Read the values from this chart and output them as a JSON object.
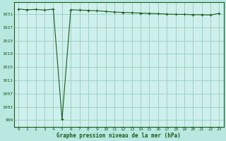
{
  "title": "Graphe pression niveau de la mer (hPa)",
  "background_color": "#b8e8e0",
  "plot_background_color": "#cdf0ec",
  "grid_color": "#99ccbb",
  "line_color": "#1a5c1a",
  "marker_color": "#1a5c1a",
  "xlim": [
    -0.5,
    23.5
  ],
  "ylim": [
    997,
    1034.5
  ],
  "yticks": [
    999,
    1003,
    1007,
    1011,
    1015,
    1019,
    1023,
    1027,
    1031
  ],
  "xticks": [
    0,
    1,
    2,
    3,
    4,
    5,
    6,
    7,
    8,
    9,
    10,
    11,
    12,
    13,
    14,
    15,
    16,
    17,
    18,
    19,
    20,
    21,
    22,
    23
  ],
  "hours": [
    0,
    1,
    2,
    3,
    4,
    5,
    6,
    7,
    8,
    9,
    10,
    11,
    12,
    13,
    14,
    15,
    16,
    17,
    18,
    19,
    20,
    21,
    22,
    23
  ],
  "pressure": [
    1032.5,
    1032.3,
    1032.4,
    1032.2,
    1032.5,
    999.2,
    1032.3,
    1032.2,
    1032.1,
    1032.0,
    1031.8,
    1031.6,
    1031.5,
    1031.4,
    1031.3,
    1031.2,
    1031.1,
    1031.0,
    1030.9,
    1030.9,
    1030.8,
    1030.8,
    1030.7,
    1031.2
  ]
}
